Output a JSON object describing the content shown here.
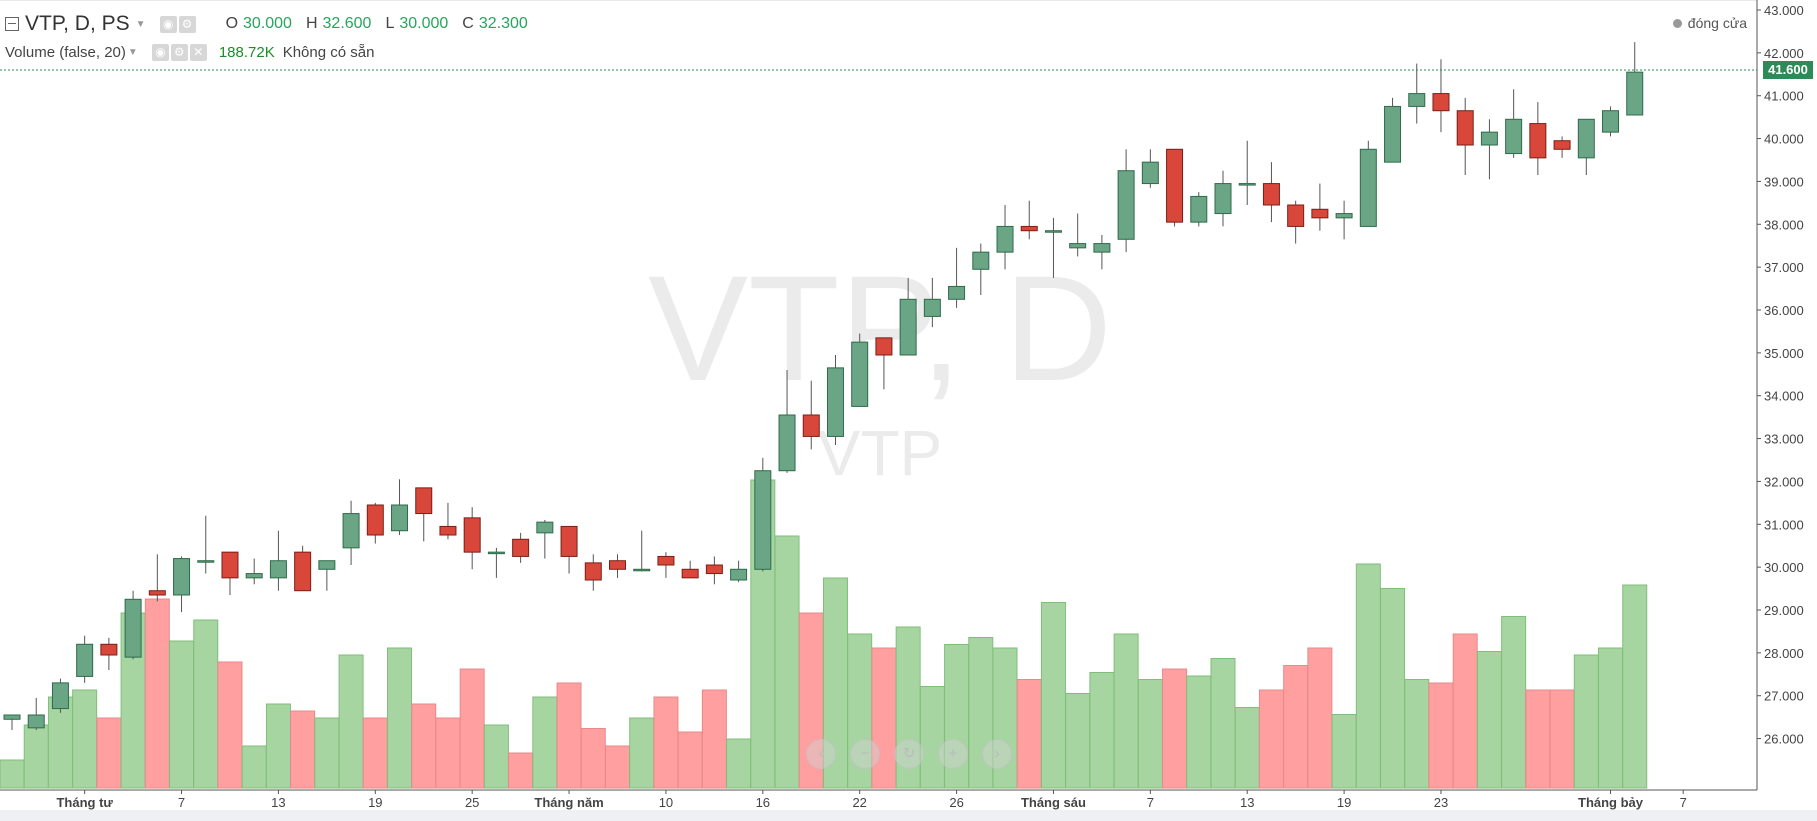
{
  "legend": {
    "symbol": "VTP, D, PS",
    "ohlc": [
      {
        "key": "O",
        "value": "30.000"
      },
      {
        "key": "H",
        "value": "32.600"
      },
      {
        "key": "L",
        "value": "30.000"
      },
      {
        "key": "C",
        "value": "32.300"
      }
    ],
    "volume_title": "Volume (false, 20)",
    "volume_value": "188.72K",
    "volume_na": "Không có sẵn"
  },
  "status": "đóng cửa",
  "last_price_tag": "41.600",
  "watermark": {
    "main": "VTP, D",
    "sub": "VTP"
  },
  "colors": {
    "up": "#6aa585",
    "up_border": "#2f6b4a",
    "down": "#d9473a",
    "down_border": "#7a1f17",
    "vol_up": "#a6d5a2",
    "vol_down": "#ff9f9f",
    "last_line": "#2e8b57"
  },
  "chart_data": {
    "type": "candlestick",
    "y_axis": {
      "min": 25.5,
      "max": 43.0,
      "ticks": [
        "26.000",
        "27.000",
        "28.000",
        "29.000",
        "30.000",
        "31.000",
        "32.000",
        "33.000",
        "34.000",
        "35.000",
        "36.000",
        "37.000",
        "38.000",
        "39.000",
        "40.000",
        "41.000",
        "42.000",
        "43.000"
      ]
    },
    "x_ticks": [
      {
        "i": 3,
        "label": "Tháng tư"
      },
      {
        "i": 7,
        "label": "7"
      },
      {
        "i": 11,
        "label": "13"
      },
      {
        "i": 15,
        "label": "19"
      },
      {
        "i": 19,
        "label": "25"
      },
      {
        "i": 23,
        "label": "Tháng năm"
      },
      {
        "i": 27,
        "label": "10"
      },
      {
        "i": 31,
        "label": "16"
      },
      {
        "i": 35,
        "label": "22"
      },
      {
        "i": 39,
        "label": "26"
      },
      {
        "i": 43,
        "label": "Tháng sáu"
      },
      {
        "i": 47,
        "label": "7"
      },
      {
        "i": 51,
        "label": "13"
      },
      {
        "i": 55,
        "label": "19"
      },
      {
        "i": 59,
        "label": "23"
      },
      {
        "i": 66,
        "label": "Tháng bảy"
      },
      {
        "i": 69,
        "label": "7"
      }
    ],
    "last_price": 41.6,
    "candles": [
      {
        "o": 26.45,
        "h": 26.55,
        "l": 26.2,
        "c": 26.55,
        "v": 0.4
      },
      {
        "o": 26.25,
        "h": 26.95,
        "l": 26.2,
        "c": 26.55,
        "v": 0.9
      },
      {
        "o": 26.7,
        "h": 27.4,
        "l": 26.6,
        "c": 27.3,
        "v": 1.3
      },
      {
        "o": 27.45,
        "h": 28.4,
        "l": 27.3,
        "c": 28.2,
        "v": 1.4
      },
      {
        "o": 28.2,
        "h": 28.35,
        "l": 27.6,
        "c": 27.95,
        "v": 1.0
      },
      {
        "o": 27.9,
        "h": 29.45,
        "l": 27.85,
        "c": 29.25,
        "v": 2.5
      },
      {
        "o": 29.45,
        "h": 30.3,
        "l": 29.2,
        "c": 29.35,
        "v": 2.7
      },
      {
        "o": 29.35,
        "h": 30.25,
        "l": 28.95,
        "c": 30.2,
        "v": 2.1
      },
      {
        "o": 30.15,
        "h": 31.2,
        "l": 29.85,
        "c": 30.15,
        "v": 2.4
      },
      {
        "o": 30.35,
        "h": 30.35,
        "l": 29.35,
        "c": 29.75,
        "v": 1.8
      },
      {
        "o": 29.75,
        "h": 30.2,
        "l": 29.6,
        "c": 29.85,
        "v": 0.6
      },
      {
        "o": 29.75,
        "h": 30.85,
        "l": 29.45,
        "c": 30.15,
        "v": 1.2
      },
      {
        "o": 30.35,
        "h": 30.5,
        "l": 29.45,
        "c": 29.45,
        "v": 1.1
      },
      {
        "o": 29.95,
        "h": 30.15,
        "l": 29.45,
        "c": 30.15,
        "v": 1.0
      },
      {
        "o": 30.45,
        "h": 31.55,
        "l": 30.05,
        "c": 31.25,
        "v": 1.9
      },
      {
        "o": 31.45,
        "h": 31.5,
        "l": 30.55,
        "c": 30.75,
        "v": 1.0
      },
      {
        "o": 30.85,
        "h": 32.05,
        "l": 30.75,
        "c": 31.45,
        "v": 2.0
      },
      {
        "o": 31.85,
        "h": 31.85,
        "l": 30.6,
        "c": 31.25,
        "v": 1.2
      },
      {
        "o": 30.95,
        "h": 31.5,
        "l": 30.65,
        "c": 30.75,
        "v": 1.0
      },
      {
        "o": 31.15,
        "h": 31.4,
        "l": 29.95,
        "c": 30.35,
        "v": 1.7
      },
      {
        "o": 30.35,
        "h": 30.45,
        "l": 29.75,
        "c": 30.35,
        "v": 0.9
      },
      {
        "o": 30.65,
        "h": 30.8,
        "l": 30.1,
        "c": 30.25,
        "v": 0.5
      },
      {
        "o": 30.8,
        "h": 31.1,
        "l": 30.2,
        "c": 31.05,
        "v": 1.3
      },
      {
        "o": 30.95,
        "h": 30.95,
        "l": 29.85,
        "c": 30.25,
        "v": 1.5
      },
      {
        "o": 30.1,
        "h": 30.3,
        "l": 29.45,
        "c": 29.7,
        "v": 0.85
      },
      {
        "o": 30.15,
        "h": 30.3,
        "l": 29.75,
        "c": 29.95,
        "v": 0.6
      },
      {
        "o": 29.95,
        "h": 30.85,
        "l": 29.9,
        "c": 29.95,
        "v": 1.0
      },
      {
        "o": 30.25,
        "h": 30.35,
        "l": 29.75,
        "c": 30.05,
        "v": 1.3
      },
      {
        "o": 29.95,
        "h": 30.15,
        "l": 29.75,
        "c": 29.75,
        "v": 0.8
      },
      {
        "o": 30.05,
        "h": 30.25,
        "l": 29.6,
        "c": 29.85,
        "v": 1.4
      },
      {
        "o": 29.7,
        "h": 30.15,
        "l": 29.65,
        "c": 29.95,
        "v": 0.7
      },
      {
        "o": 29.95,
        "h": 32.55,
        "l": 29.9,
        "c": 32.25,
        "v": 4.4
      },
      {
        "o": 32.25,
        "h": 34.6,
        "l": 32.2,
        "c": 33.55,
        "v": 3.6
      },
      {
        "o": 33.55,
        "h": 34.35,
        "l": 32.75,
        "c": 33.05,
        "v": 2.5
      },
      {
        "o": 33.05,
        "h": 34.95,
        "l": 32.85,
        "c": 34.65,
        "v": 3.0
      },
      {
        "o": 33.75,
        "h": 35.45,
        "l": 33.75,
        "c": 35.25,
        "v": 2.2
      },
      {
        "o": 35.35,
        "h": 35.35,
        "l": 34.15,
        "c": 34.95,
        "v": 2.0
      },
      {
        "o": 34.95,
        "h": 36.75,
        "l": 34.95,
        "c": 36.25,
        "v": 2.3
      },
      {
        "o": 35.85,
        "h": 36.75,
        "l": 35.6,
        "c": 36.25,
        "v": 1.45
      },
      {
        "o": 36.25,
        "h": 37.45,
        "l": 36.05,
        "c": 36.55,
        "v": 2.05
      },
      {
        "o": 36.95,
        "h": 37.55,
        "l": 36.35,
        "c": 37.35,
        "v": 2.15
      },
      {
        "o": 37.35,
        "h": 38.45,
        "l": 36.95,
        "c": 37.95,
        "v": 2.0
      },
      {
        "o": 37.95,
        "h": 38.55,
        "l": 37.65,
        "c": 37.85,
        "v": 1.55
      },
      {
        "o": 37.85,
        "h": 38.15,
        "l": 36.75,
        "c": 37.85,
        "v": 2.65
      },
      {
        "o": 37.45,
        "h": 38.25,
        "l": 37.25,
        "c": 37.55,
        "v": 1.35
      },
      {
        "o": 37.35,
        "h": 37.75,
        "l": 36.95,
        "c": 37.55,
        "v": 1.65
      },
      {
        "o": 37.65,
        "h": 39.75,
        "l": 37.35,
        "c": 39.25,
        "v": 2.2
      },
      {
        "o": 38.95,
        "h": 39.75,
        "l": 38.85,
        "c": 39.45,
        "v": 1.55
      },
      {
        "o": 39.75,
        "h": 39.75,
        "l": 37.95,
        "c": 38.05,
        "v": 1.7
      },
      {
        "o": 38.05,
        "h": 38.75,
        "l": 37.95,
        "c": 38.65,
        "v": 1.6
      },
      {
        "o": 38.25,
        "h": 39.25,
        "l": 37.95,
        "c": 38.95,
        "v": 1.85
      },
      {
        "o": 38.95,
        "h": 39.95,
        "l": 38.45,
        "c": 38.95,
        "v": 1.15
      },
      {
        "o": 38.95,
        "h": 39.45,
        "l": 38.05,
        "c": 38.45,
        "v": 1.4
      },
      {
        "o": 38.45,
        "h": 38.55,
        "l": 37.55,
        "c": 37.95,
        "v": 1.75
      },
      {
        "o": 38.35,
        "h": 38.95,
        "l": 37.85,
        "c": 38.15,
        "v": 2.0
      },
      {
        "o": 38.15,
        "h": 38.55,
        "l": 37.65,
        "c": 38.25,
        "v": 1.05
      },
      {
        "o": 37.95,
        "h": 39.95,
        "l": 37.95,
        "c": 39.75,
        "v": 3.2
      },
      {
        "o": 39.45,
        "h": 40.95,
        "l": 39.45,
        "c": 40.75,
        "v": 2.85
      },
      {
        "o": 40.75,
        "h": 41.75,
        "l": 40.35,
        "c": 41.05,
        "v": 1.55
      },
      {
        "o": 41.05,
        "h": 41.85,
        "l": 40.15,
        "c": 40.65,
        "v": 1.5
      },
      {
        "o": 40.65,
        "h": 40.95,
        "l": 39.15,
        "c": 39.85,
        "v": 2.2
      },
      {
        "o": 39.85,
        "h": 40.45,
        "l": 39.05,
        "c": 40.15,
        "v": 1.95
      },
      {
        "o": 39.65,
        "h": 41.15,
        "l": 39.55,
        "c": 40.45,
        "v": 2.45
      },
      {
        "o": 40.35,
        "h": 40.85,
        "l": 39.15,
        "c": 39.55,
        "v": 1.4
      },
      {
        "o": 39.95,
        "h": 40.05,
        "l": 39.55,
        "c": 39.75,
        "v": 1.4
      },
      {
        "o": 39.55,
        "h": 40.45,
        "l": 39.15,
        "c": 40.45,
        "v": 1.9
      },
      {
        "o": 40.15,
        "h": 40.75,
        "l": 40.05,
        "c": 40.65,
        "v": 2.0
      },
      {
        "o": 40.55,
        "h": 42.25,
        "l": 40.55,
        "c": 41.55,
        "v": 2.9
      }
    ]
  }
}
